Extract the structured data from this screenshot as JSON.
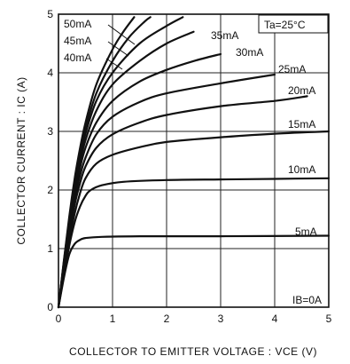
{
  "chart_data": {
    "type": "line",
    "xlabel": "COLLECTOR TO EMITTER VOLTAGE : VCE (V)",
    "ylabel": "COLLECTOR CURRENT : IC (A)",
    "xlim": [
      0,
      5
    ],
    "ylim": [
      0,
      5
    ],
    "x_ticks": [
      "0",
      "1",
      "2",
      "3",
      "4",
      "5"
    ],
    "y_ticks": [
      "0",
      "1",
      "2",
      "3",
      "4",
      "5"
    ],
    "grid": true,
    "condition": "Ta=25°C",
    "series": [
      {
        "name": "IB=0A",
        "points": [
          [
            0,
            0
          ],
          [
            5,
            0
          ]
        ]
      },
      {
        "name": "5mA",
        "points": [
          [
            0,
            0
          ],
          [
            0.1,
            0.5
          ],
          [
            0.2,
            0.9
          ],
          [
            0.3,
            1.08
          ],
          [
            0.4,
            1.15
          ],
          [
            0.5,
            1.18
          ],
          [
            0.8,
            1.2
          ],
          [
            1.5,
            1.21
          ],
          [
            3,
            1.21
          ],
          [
            5,
            1.22
          ]
        ]
      },
      {
        "name": "10mA",
        "points": [
          [
            0,
            0
          ],
          [
            0.1,
            0.55
          ],
          [
            0.2,
            1.05
          ],
          [
            0.3,
            1.45
          ],
          [
            0.4,
            1.72
          ],
          [
            0.5,
            1.9
          ],
          [
            0.6,
            2.0
          ],
          [
            0.8,
            2.08
          ],
          [
            1.2,
            2.14
          ],
          [
            2,
            2.17
          ],
          [
            3,
            2.18
          ],
          [
            4,
            2.19
          ],
          [
            5,
            2.2
          ]
        ]
      },
      {
        "name": "15mA",
        "points": [
          [
            0,
            0
          ],
          [
            0.1,
            0.6
          ],
          [
            0.2,
            1.15
          ],
          [
            0.3,
            1.6
          ],
          [
            0.4,
            1.95
          ],
          [
            0.5,
            2.2
          ],
          [
            0.7,
            2.45
          ],
          [
            1,
            2.6
          ],
          [
            1.5,
            2.73
          ],
          [
            2,
            2.82
          ],
          [
            3,
            2.9
          ],
          [
            4,
            2.96
          ],
          [
            5,
            3.0
          ]
        ]
      },
      {
        "name": "20mA",
        "points": [
          [
            0,
            0
          ],
          [
            0.1,
            0.65
          ],
          [
            0.2,
            1.25
          ],
          [
            0.3,
            1.75
          ],
          [
            0.4,
            2.12
          ],
          [
            0.5,
            2.4
          ],
          [
            0.7,
            2.72
          ],
          [
            1,
            2.95
          ],
          [
            1.5,
            3.15
          ],
          [
            2,
            3.28
          ],
          [
            3,
            3.43
          ],
          [
            4,
            3.52
          ],
          [
            4.6,
            3.6
          ]
        ]
      },
      {
        "name": "25mA",
        "points": [
          [
            0,
            0
          ],
          [
            0.1,
            0.7
          ],
          [
            0.2,
            1.32
          ],
          [
            0.3,
            1.85
          ],
          [
            0.4,
            2.25
          ],
          [
            0.5,
            2.55
          ],
          [
            0.7,
            2.95
          ],
          [
            1,
            3.25
          ],
          [
            1.5,
            3.5
          ],
          [
            2,
            3.65
          ],
          [
            3,
            3.82
          ],
          [
            4,
            3.97
          ]
        ]
      },
      {
        "name": "30mA",
        "points": [
          [
            0,
            0
          ],
          [
            0.1,
            0.72
          ],
          [
            0.2,
            1.38
          ],
          [
            0.3,
            1.93
          ],
          [
            0.4,
            2.38
          ],
          [
            0.5,
            2.72
          ],
          [
            0.7,
            3.15
          ],
          [
            1,
            3.52
          ],
          [
            1.5,
            3.85
          ],
          [
            2,
            4.05
          ],
          [
            2.5,
            4.2
          ],
          [
            3,
            4.32
          ]
        ]
      },
      {
        "name": "35mA",
        "points": [
          [
            0,
            0
          ],
          [
            0.1,
            0.74
          ],
          [
            0.2,
            1.42
          ],
          [
            0.3,
            2.0
          ],
          [
            0.4,
            2.48
          ],
          [
            0.5,
            2.85
          ],
          [
            0.7,
            3.35
          ],
          [
            1,
            3.8
          ],
          [
            1.5,
            4.2
          ],
          [
            2,
            4.5
          ],
          [
            2.5,
            4.7
          ]
        ]
      },
      {
        "name": "40mA",
        "points": [
          [
            0,
            0
          ],
          [
            0.1,
            0.76
          ],
          [
            0.2,
            1.46
          ],
          [
            0.3,
            2.06
          ],
          [
            0.4,
            2.56
          ],
          [
            0.5,
            2.96
          ],
          [
            0.7,
            3.52
          ],
          [
            1,
            4.0
          ],
          [
            1.5,
            4.5
          ],
          [
            2,
            4.8
          ],
          [
            2.3,
            4.95
          ]
        ]
      },
      {
        "name": "45mA",
        "points": [
          [
            0,
            0
          ],
          [
            0.1,
            0.78
          ],
          [
            0.2,
            1.5
          ],
          [
            0.3,
            2.12
          ],
          [
            0.4,
            2.63
          ],
          [
            0.5,
            3.05
          ],
          [
            0.7,
            3.65
          ],
          [
            1,
            4.2
          ],
          [
            1.3,
            4.6
          ],
          [
            1.6,
            4.88
          ],
          [
            1.7,
            4.95
          ]
        ]
      },
      {
        "name": "50mA",
        "points": [
          [
            0,
            0
          ],
          [
            0.1,
            0.8
          ],
          [
            0.2,
            1.55
          ],
          [
            0.3,
            2.2
          ],
          [
            0.4,
            2.72
          ],
          [
            0.5,
            3.15
          ],
          [
            0.7,
            3.8
          ],
          [
            1,
            4.4
          ],
          [
            1.2,
            4.7
          ],
          [
            1.4,
            4.95
          ]
        ]
      }
    ]
  }
}
